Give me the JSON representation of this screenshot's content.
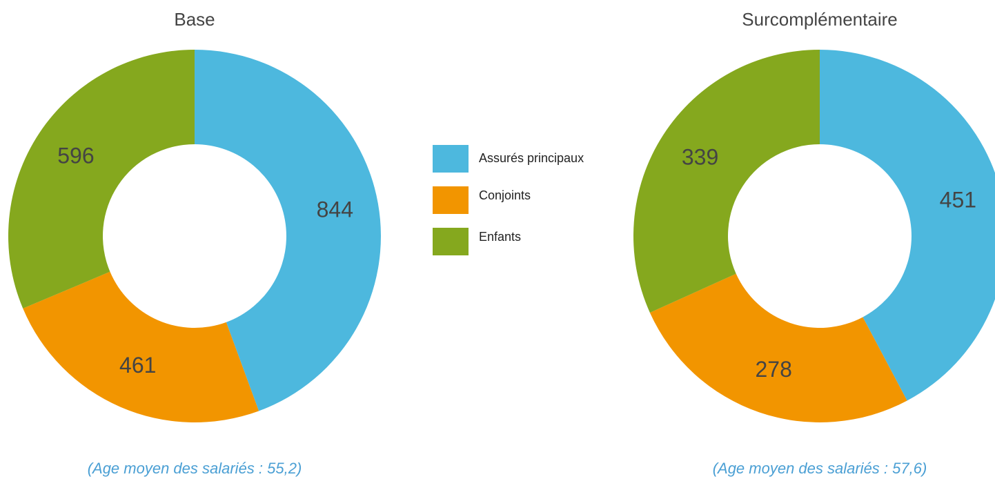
{
  "chart_data": [
    {
      "type": "donut",
      "title": "Base",
      "categories": [
        "Assurés principaux",
        "Conjoints",
        "Enfants"
      ],
      "values": [
        844,
        461,
        596
      ],
      "colors": [
        "#4db8de",
        "#f29500",
        "#85a81e"
      ],
      "caption": "(Age moyen des salariés : 55,2)"
    },
    {
      "type": "donut",
      "title": "Surcomplémentaire",
      "categories": [
        "Assurés principaux",
        "Conjoints",
        "Enfants"
      ],
      "values": [
        451,
        278,
        339
      ],
      "colors": [
        "#4db8de",
        "#f29500",
        "#85a81e"
      ],
      "caption": "(Age moyen des salariés : 57,6)"
    }
  ]
}
